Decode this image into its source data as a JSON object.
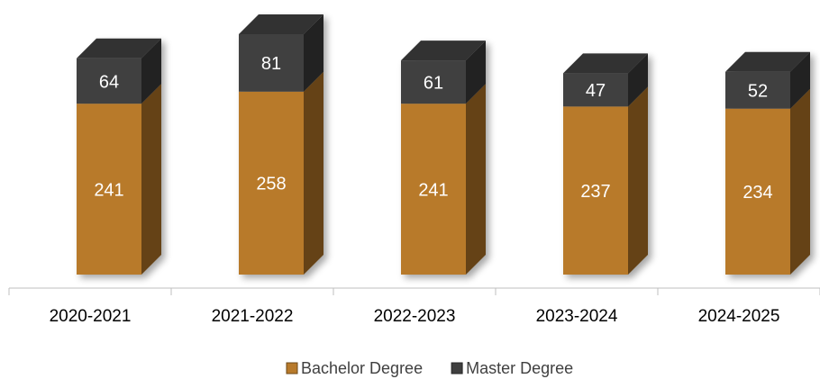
{
  "chart_data": {
    "type": "bar3d_stacked",
    "categories": [
      "2020-2021",
      "2021-2022",
      "2022-2023",
      "2023-2024",
      "2024-2025"
    ],
    "series": [
      {
        "name": "Bachelor Degree",
        "color": "#b87a2b",
        "values": [
          241,
          258,
          241,
          237,
          234
        ]
      },
      {
        "name": "Master Degree",
        "color": "#3f3f3f",
        "values": [
          64,
          81,
          61,
          47,
          52
        ]
      }
    ],
    "legend": "bottom"
  }
}
